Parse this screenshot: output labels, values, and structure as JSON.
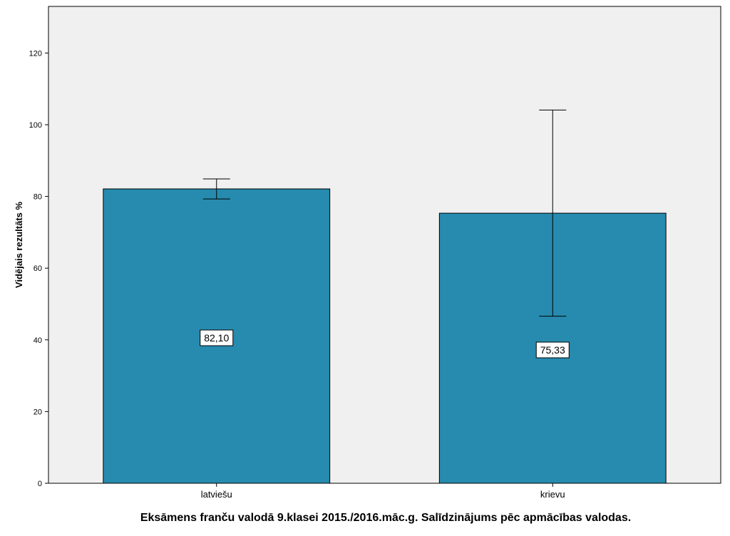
{
  "chart_data": {
    "type": "bar",
    "title": "Eksāmens franču valodā 9.klasei 2015./2016.māc.g. Salīdzinājums pēc apmācības valodas.",
    "xlabel": "",
    "ylabel": "Vidējais rezultāts %",
    "categories": [
      "latviešu",
      "krievu"
    ],
    "values": [
      82.1,
      75.33
    ],
    "value_labels": [
      "82,10",
      "75,33"
    ],
    "error_low": [
      79.3,
      46.6
    ],
    "error_high": [
      84.9,
      104.1
    ],
    "ylim": [
      0,
      133
    ],
    "yticks": [
      "0",
      "20",
      "40",
      "60",
      "80",
      "100",
      "120"
    ],
    "grid": false,
    "legend": "none",
    "colors": {
      "bar_fill": "#268BAE",
      "plot_background": "#F0F0F0"
    }
  }
}
